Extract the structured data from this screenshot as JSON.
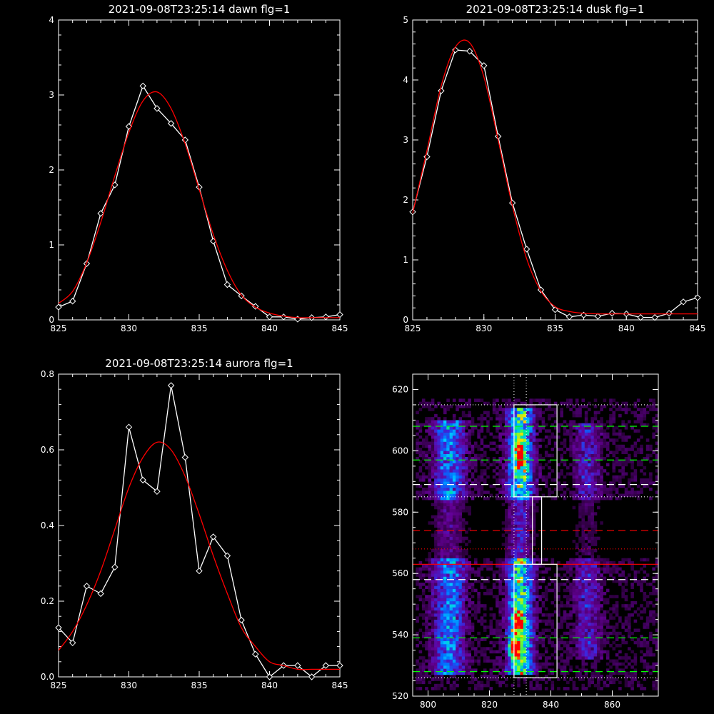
{
  "chart_data": [
    {
      "type": "line",
      "title": "2021-09-08T23:25:14 dawn flg=1",
      "xlim": [
        825,
        845
      ],
      "ylim": [
        0,
        4
      ],
      "xticks": [
        "825",
        "830",
        "835",
        "840",
        "845"
      ],
      "yticks": [
        "0",
        "1",
        "2",
        "3",
        "4"
      ],
      "series": [
        {
          "kind": "data",
          "color": "#ffffff",
          "marker": "diamond",
          "x": [
            825,
            826,
            827,
            828,
            829,
            830,
            831,
            832,
            833,
            834,
            835,
            836,
            837,
            838,
            839,
            840,
            841,
            842,
            843,
            844,
            845
          ],
          "y": [
            0.17,
            0.25,
            0.75,
            1.42,
            1.8,
            2.58,
            3.12,
            2.82,
            2.62,
            2.4,
            1.77,
            1.05,
            0.47,
            0.32,
            0.18,
            0.04,
            0.04,
            0.01,
            0.03,
            0.04,
            0.07
          ]
        },
        {
          "kind": "fit",
          "color": "#ff0000",
          "x": [
            825,
            826,
            827,
            828,
            829,
            830,
            831,
            832,
            833,
            834,
            835,
            836,
            837,
            838,
            839,
            840,
            841,
            842,
            843,
            844,
            845
          ],
          "y": [
            0.22,
            0.38,
            0.76,
            1.3,
            1.92,
            2.5,
            2.92,
            3.04,
            2.82,
            2.35,
            1.74,
            1.14,
            0.66,
            0.33,
            0.17,
            0.09,
            0.05,
            0.03,
            0.03,
            0.03,
            0.03
          ]
        }
      ]
    },
    {
      "type": "line",
      "title": "2021-09-08T23:25:14 dusk flg=1",
      "xlim": [
        825,
        845
      ],
      "ylim": [
        0,
        5
      ],
      "xticks": [
        "825",
        "830",
        "835",
        "840",
        "845"
      ],
      "yticks": [
        "0",
        "1",
        "2",
        "3",
        "4",
        "5"
      ],
      "series": [
        {
          "kind": "data",
          "color": "#ffffff",
          "marker": "diamond",
          "x": [
            825,
            826,
            827,
            828,
            829,
            830,
            831,
            832,
            833,
            834,
            835,
            836,
            837,
            838,
            839,
            840,
            841,
            842,
            843,
            844,
            845
          ],
          "y": [
            1.8,
            2.72,
            3.82,
            4.5,
            4.48,
            4.24,
            3.06,
            1.95,
            1.18,
            0.5,
            0.17,
            0.05,
            0.08,
            0.06,
            0.11,
            0.1,
            0.04,
            0.04,
            0.11,
            0.3,
            0.37
          ]
        },
        {
          "kind": "fit",
          "color": "#ff0000",
          "x": [
            825,
            826,
            827,
            828,
            829,
            830,
            831,
            832,
            833,
            834,
            835,
            836,
            837,
            838,
            839,
            840,
            841,
            842,
            843,
            844,
            845
          ],
          "y": [
            1.78,
            2.82,
            3.9,
            4.55,
            4.62,
            4.05,
            3.0,
            1.9,
            1.02,
            0.48,
            0.22,
            0.14,
            0.11,
            0.1,
            0.1,
            0.1,
            0.1,
            0.1,
            0.1,
            0.1,
            0.1
          ]
        }
      ]
    },
    {
      "type": "line",
      "title": "2021-09-08T23:25:14 aurora flg=1",
      "xlim": [
        825,
        845
      ],
      "ylim": [
        0,
        0.8
      ],
      "xticks": [
        "825",
        "830",
        "835",
        "840",
        "845"
      ],
      "yticks": [
        "0.0",
        "0.2",
        "0.4",
        "0.6",
        "0.8"
      ],
      "series": [
        {
          "kind": "data",
          "color": "#ffffff",
          "marker": "diamond",
          "x": [
            825,
            826,
            827,
            828,
            829,
            830,
            831,
            832,
            833,
            834,
            835,
            836,
            837,
            838,
            839,
            840,
            841,
            842,
            843,
            844,
            845
          ],
          "y": [
            0.13,
            0.09,
            0.24,
            0.22,
            0.29,
            0.66,
            0.52,
            0.49,
            0.77,
            0.58,
            0.28,
            0.37,
            0.32,
            0.15,
            0.06,
            0.0,
            0.03,
            0.03,
            0.0,
            0.03,
            0.03
          ]
        },
        {
          "kind": "fit",
          "color": "#ff0000",
          "x": [
            825,
            826,
            827,
            828,
            829,
            830,
            831,
            832,
            833,
            834,
            835,
            836,
            837,
            838,
            839,
            840,
            841,
            842,
            843,
            844,
            845
          ],
          "y": [
            0.07,
            0.12,
            0.19,
            0.28,
            0.39,
            0.5,
            0.58,
            0.62,
            0.6,
            0.53,
            0.43,
            0.32,
            0.22,
            0.13,
            0.08,
            0.04,
            0.03,
            0.02,
            0.02,
            0.02,
            0.02
          ]
        }
      ]
    },
    {
      "type": "heatmap",
      "title": "",
      "xlim": [
        795,
        875
      ],
      "ylim": [
        520,
        625
      ],
      "xticks": [
        "800",
        "820",
        "840",
        "860"
      ],
      "yticks": [
        "520",
        "540",
        "560",
        "580",
        "600",
        "620"
      ],
      "emission_bands": [
        {
          "x": 807,
          "width": 5,
          "y_range": [
            527,
            609
          ],
          "intensity": 0.55
        },
        {
          "x": 830,
          "width": 4,
          "y_range": [
            527,
            613
          ],
          "intensity": 0.85
        },
        {
          "x": 852,
          "width": 4,
          "y_range": [
            532,
            608
          ],
          "intensity": 0.3
        }
      ],
      "hot_spots": [
        {
          "x": 830,
          "y": 599,
          "intensity": 1.0
        },
        {
          "x": 828,
          "y": 536,
          "intensity": 1.0
        },
        {
          "x": 829,
          "y": 544,
          "intensity": 0.9
        }
      ],
      "vertical_dotted_lines_x": [
        828,
        832
      ],
      "boxes": [
        {
          "x_range": [
            828,
            842
          ],
          "y_range": [
            585,
            615
          ]
        },
        {
          "x_range": [
            828,
            842
          ],
          "y_range": [
            526,
            563
          ]
        },
        {
          "x_range": [
            834,
            837
          ],
          "y_range": [
            563,
            585
          ]
        }
      ],
      "horizontal_lines": [
        {
          "y": 615,
          "color": "#ffffff",
          "style": "dotted"
        },
        {
          "y": 608,
          "color": "#00ff00",
          "style": "dashed"
        },
        {
          "y": 597,
          "color": "#00ff00",
          "style": "dashed"
        },
        {
          "y": 589,
          "color": "#ffffff",
          "style": "dashed"
        },
        {
          "y": 585,
          "color": "#ffffff",
          "style": "dotted"
        },
        {
          "y": 574,
          "color": "#ff0000",
          "style": "dashed"
        },
        {
          "y": 568,
          "color": "#ff0000",
          "style": "dotted"
        },
        {
          "y": 563,
          "color": "#ff0000",
          "style": "solid"
        },
        {
          "y": 558,
          "color": "#ffffff",
          "style": "dashed"
        },
        {
          "y": 539,
          "color": "#00ff00",
          "style": "dashed"
        },
        {
          "y": 528,
          "color": "#00ff00",
          "style": "dashed"
        },
        {
          "y": 526,
          "color": "#ffffff",
          "style": "dotted"
        }
      ]
    }
  ]
}
